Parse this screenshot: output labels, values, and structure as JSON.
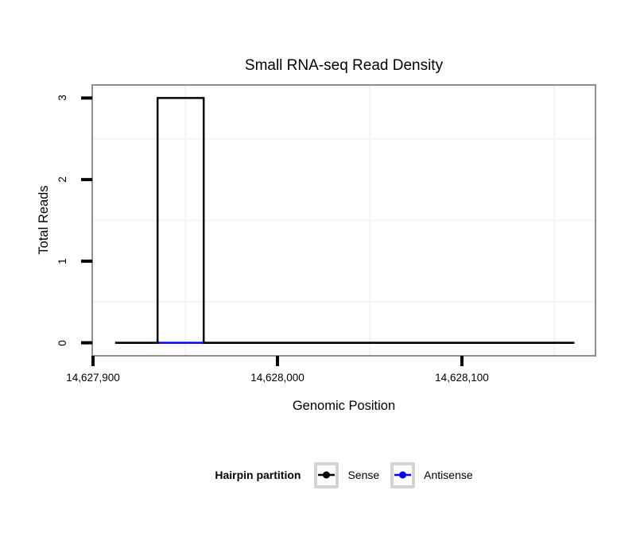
{
  "legend": {
    "title": "Hairpin partition"
  },
  "colors": {
    "background": "#ffffff",
    "panel_border": "#8f8f8f",
    "gridline": "#f4f4f4",
    "tick_mark": "#000000",
    "text": "#000000",
    "legend_key_border": "#d4d4d4"
  },
  "chart_data": {
    "type": "line",
    "title": "Small RNA-seq Read Density",
    "xlabel": "Genomic Position",
    "ylabel": "Total Reads",
    "xlim": [
      14627900,
      14628172
    ],
    "ylim": [
      -0.15,
      3.15
    ],
    "x_ticks": {
      "values": [
        14627900,
        14628000,
        14628100
      ],
      "labels": [
        "14,627,900",
        "14,628,000",
        "14,628,100"
      ]
    },
    "y_ticks": {
      "values": [
        0,
        1,
        2,
        3
      ],
      "labels": [
        "0",
        "1",
        "2",
        "3"
      ]
    },
    "minor_gridlines": {
      "x": [
        14627950,
        14628050,
        14628150
      ],
      "y": [
        0.5,
        1.5,
        2.5
      ]
    },
    "grid": "minor-only",
    "legend_position": "bottom",
    "series": [
      {
        "name": "Sense",
        "color": "#000000",
        "points": [
          [
            14627912,
            0
          ],
          [
            14627935,
            0
          ],
          [
            14627935,
            3
          ],
          [
            14627960,
            3
          ],
          [
            14627960,
            0
          ],
          [
            14628161,
            0
          ]
        ]
      },
      {
        "name": "Antisense",
        "color": "#0000FF",
        "points": [
          [
            14627912,
            0
          ],
          [
            14628161,
            0
          ]
        ]
      }
    ]
  }
}
